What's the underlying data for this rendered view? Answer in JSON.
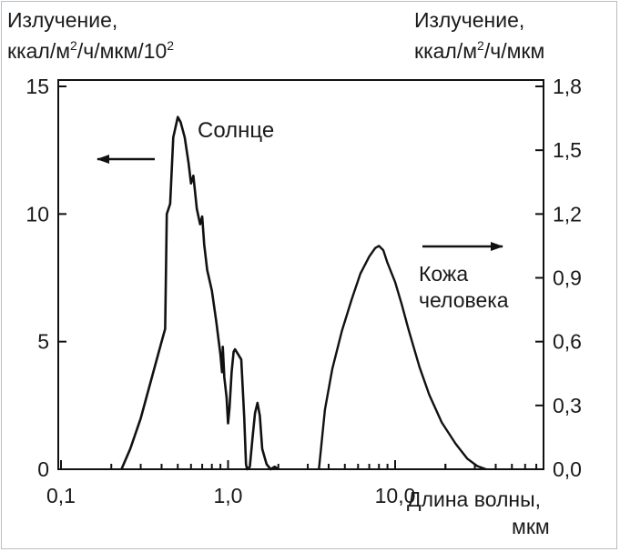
{
  "chart_data": {
    "type": "line",
    "x_scale": "log",
    "xlim": [
      0.1,
      50
    ],
    "left_axis": {
      "label_line1": "Излучение,",
      "label_line2_base": "ккал/м",
      "label_line2_sup1": "2",
      "label_line2_mid": "/ч/мкм/10",
      "label_line2_sup2": "2",
      "ylim": [
        0,
        15
      ],
      "ticks": [
        "0",
        "5",
        "10",
        "15"
      ]
    },
    "right_axis": {
      "label_line1": "Излучение,",
      "label_line2_base": "ккал/м",
      "label_line2_sup1": "2",
      "label_line2_mid": "/ч/мкм",
      "ylim": [
        0,
        1.8
      ],
      "ticks": [
        "0,0",
        "0,3",
        "0,6",
        "0,9",
        "1,2",
        "1,5",
        "1,8"
      ]
    },
    "x_axis": {
      "ticks": [
        "0,1",
        "1,0",
        "10,0"
      ],
      "label_line1": "Длина волны,",
      "label_line2": "мкм"
    },
    "series": [
      {
        "name": "Солнце",
        "axis": "left",
        "x": [
          0.23,
          0.26,
          0.3,
          0.35,
          0.4,
          0.42,
          0.43,
          0.45,
          0.47,
          0.5,
          0.52,
          0.55,
          0.58,
          0.6,
          0.62,
          0.65,
          0.68,
          0.7,
          0.72,
          0.75,
          0.8,
          0.85,
          0.9,
          0.92,
          0.93,
          0.95,
          0.98,
          1.0,
          1.02,
          1.05,
          1.08,
          1.1,
          1.15,
          1.2,
          1.25,
          1.28,
          1.3,
          1.35,
          1.4,
          1.45,
          1.5,
          1.55,
          1.6,
          1.7,
          1.8,
          1.9,
          2.0
        ],
        "values": [
          0.0,
          0.8,
          2.0,
          3.6,
          5.0,
          5.5,
          10.0,
          10.4,
          13.0,
          13.8,
          13.6,
          13.0,
          12.0,
          11.2,
          11.5,
          10.2,
          9.6,
          9.9,
          8.8,
          7.8,
          7.0,
          5.8,
          4.5,
          3.8,
          4.8,
          3.6,
          2.8,
          1.8,
          2.4,
          3.8,
          4.6,
          4.7,
          4.5,
          4.3,
          2.0,
          0.2,
          0.0,
          0.1,
          1.2,
          2.2,
          2.6,
          2.1,
          0.8,
          0.2,
          0.0,
          0.1,
          0.0
        ]
      },
      {
        "name": "Кожа человека",
        "axis": "right",
        "x": [
          3.5,
          3.8,
          4.2,
          4.8,
          5.5,
          6.2,
          7.0,
          7.6,
          8.0,
          8.5,
          9.0,
          10.0,
          11.0,
          12.0,
          14.0,
          16.0,
          19.0,
          23.0,
          27.0,
          31.0,
          35.0
        ],
        "values": [
          0.0,
          0.28,
          0.47,
          0.65,
          0.8,
          0.92,
          1.0,
          1.04,
          1.05,
          1.03,
          0.97,
          0.88,
          0.77,
          0.66,
          0.48,
          0.35,
          0.22,
          0.12,
          0.05,
          0.015,
          0.0
        ]
      }
    ],
    "annotations": {
      "sun_label": "Солнце",
      "skin_label_line1": "Кожа",
      "skin_label_line2": "человека"
    }
  }
}
